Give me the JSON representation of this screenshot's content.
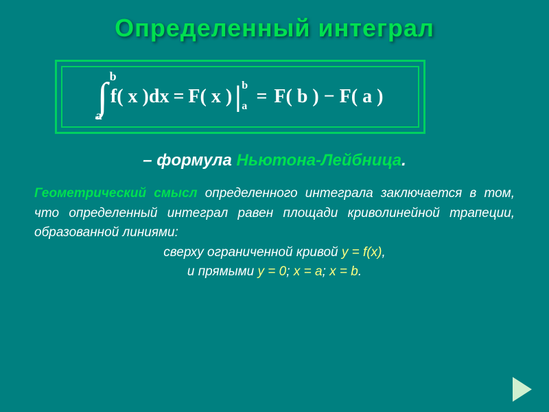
{
  "title": "Определенный интеграл",
  "formula": {
    "upper_limit": "b",
    "lower_limit": "a",
    "body_left": "f( x )dx",
    "eq1": "=",
    "antideriv": "F( x )",
    "eval_upper": "b",
    "eval_lower": "a",
    "eq2": "=",
    "result": "F( b ) − F( a )"
  },
  "subtitle": {
    "dash": "– формула ",
    "name": "Ньютона-Лейбница",
    "dot": "."
  },
  "paragraph": {
    "l1a": "Геометрический смысл",
    "l1b": " определенного интеграла заключается в том, что определенный интеграл равен площади криволинейной трапеции, образованной линиями:",
    "l2a": "сверху ограниченной кривой ",
    "l2eq": "y = f(x)",
    "l2b": ",",
    "l3a": "и прямыми  ",
    "l3eq1": "y = 0",
    "l3s1": ";  ",
    "l3eq2": "x = a",
    "l3s2": ";  ",
    "l3eq3": "x = b",
    "l3b": "."
  },
  "colors": {
    "background": "#008080",
    "accent": "#00e050",
    "text": "#ffffff",
    "equation": "#ffff80",
    "nav": "#d0f0d0"
  }
}
